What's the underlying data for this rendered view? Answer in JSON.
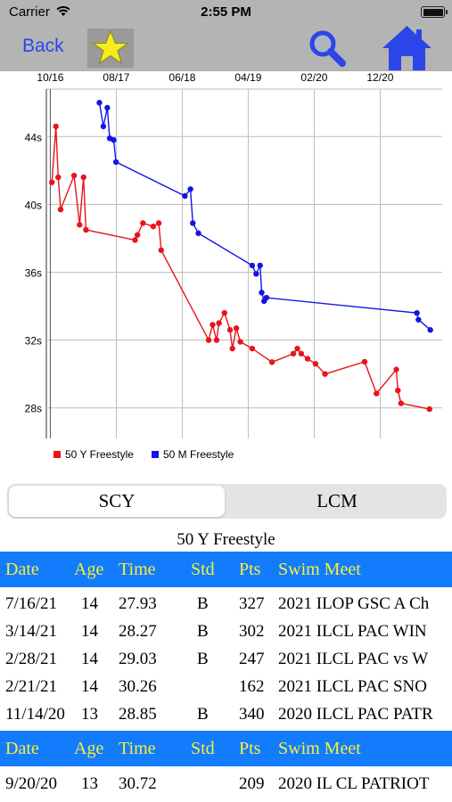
{
  "status": {
    "carrier": "Carrier",
    "time": "2:55 PM"
  },
  "nav": {
    "back": "Back",
    "star_icon": "star-icon",
    "search_icon": "search-icon",
    "home_icon": "home-icon"
  },
  "chart_data": {
    "type": "line",
    "x_ticks": [
      "10/16",
      "08/17",
      "06/18",
      "04/19",
      "02/20",
      "12/20"
    ],
    "y_ticks": [
      "44s",
      "40s",
      "36s",
      "32s",
      "28s"
    ],
    "ylim": [
      26.2,
      46.8
    ],
    "xlim": [
      2016.7,
      2021.7
    ],
    "grid": true,
    "legend_position": "bottom-left",
    "series": [
      {
        "name": "50 Y Freestyle",
        "color": "#e8141a",
        "points": [
          [
            2016.77,
            41.3
          ],
          [
            2016.82,
            44.6
          ],
          [
            2016.85,
            41.6
          ],
          [
            2016.88,
            39.7
          ],
          [
            2017.05,
            41.7
          ],
          [
            2017.12,
            38.8
          ],
          [
            2017.17,
            41.6
          ],
          [
            2017.2,
            38.5
          ],
          [
            2017.82,
            37.9
          ],
          [
            2017.85,
            38.2
          ],
          [
            2017.92,
            38.9
          ],
          [
            2018.05,
            38.7
          ],
          [
            2018.12,
            38.9
          ],
          [
            2018.15,
            37.3
          ],
          [
            2018.75,
            32.0
          ],
          [
            2018.8,
            32.9
          ],
          [
            2018.85,
            32.0
          ],
          [
            2018.88,
            33.0
          ],
          [
            2018.95,
            33.6
          ],
          [
            2019.02,
            32.6
          ],
          [
            2019.05,
            31.5
          ],
          [
            2019.1,
            32.7
          ],
          [
            2019.15,
            31.9
          ],
          [
            2019.3,
            31.5
          ],
          [
            2019.55,
            30.7
          ],
          [
            2019.82,
            31.2
          ],
          [
            2019.87,
            31.5
          ],
          [
            2019.92,
            31.2
          ],
          [
            2020.0,
            30.9
          ],
          [
            2020.1,
            30.6
          ],
          [
            2020.22,
            30.0
          ],
          [
            2020.72,
            30.72
          ],
          [
            2020.87,
            28.85
          ],
          [
            2021.12,
            30.26
          ],
          [
            2021.14,
            29.03
          ],
          [
            2021.18,
            28.27
          ],
          [
            2021.54,
            27.93
          ]
        ]
      },
      {
        "name": "50 M Freestyle",
        "color": "#1414e6",
        "points": [
          [
            2017.37,
            46.0
          ],
          [
            2017.42,
            44.6
          ],
          [
            2017.47,
            45.7
          ],
          [
            2017.5,
            43.9
          ],
          [
            2017.55,
            43.8
          ],
          [
            2017.58,
            42.5
          ],
          [
            2018.45,
            40.5
          ],
          [
            2018.52,
            40.9
          ],
          [
            2018.55,
            38.9
          ],
          [
            2018.62,
            38.3
          ],
          [
            2019.3,
            36.4
          ],
          [
            2019.35,
            35.9
          ],
          [
            2019.4,
            36.4
          ],
          [
            2019.42,
            34.8
          ],
          [
            2019.45,
            34.3
          ],
          [
            2019.48,
            34.5
          ],
          [
            2021.38,
            33.6
          ],
          [
            2021.4,
            33.2
          ],
          [
            2021.55,
            32.6
          ]
        ]
      }
    ]
  },
  "segment": {
    "scy": "SCY",
    "lcm": "LCM"
  },
  "table_title": "50 Y Freestyle",
  "headers": {
    "date": "Date",
    "age": "Age",
    "time": "Time",
    "std": "Std",
    "pts": "Pts",
    "meet": "Swim Meet"
  },
  "rows": [
    {
      "date": "7/16/21",
      "age": "14",
      "time": "27.93",
      "std": "B",
      "pts": "327",
      "meet": "2021 ILOP GSC A Ch"
    },
    {
      "date": "3/14/21",
      "age": "14",
      "time": "28.27",
      "std": "B",
      "pts": "302",
      "meet": "2021 ILCL PAC WIN"
    },
    {
      "date": "2/28/21",
      "age": "14",
      "time": "29.03",
      "std": "B",
      "pts": "247",
      "meet": "2021 ILCL PAC vs W"
    },
    {
      "date": "2/21/21",
      "age": "14",
      "time": "30.26",
      "std": "",
      "pts": "162",
      "meet": "2021 ILCL PAC SNO"
    },
    {
      "date": "11/14/20",
      "age": "13",
      "time": "28.85",
      "std": "B",
      "pts": "340",
      "meet": "2020 ILCL PAC PATR"
    }
  ],
  "rows2": [
    {
      "date": "9/20/20",
      "age": "13",
      "time": "30.72",
      "std": "",
      "pts": "209",
      "meet": "2020 IL CL PATRIOT"
    }
  ]
}
